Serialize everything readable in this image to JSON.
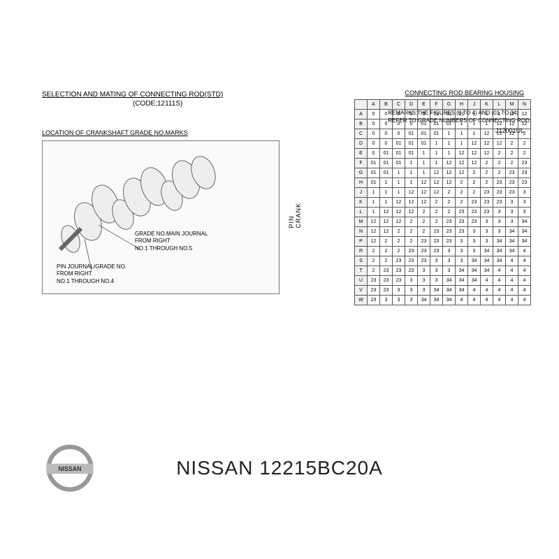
{
  "title": {
    "main": "SELECTION AND MATING OF CONNECTING ROD(STD)",
    "code": "(CODE;12111S)"
  },
  "location_label": "LOCATION OF CRANKSHAFT GRADE NO.MARKS",
  "callout1": {
    "line1": "GRADE NO.MAIN JOURNAL",
    "line2": "FROM RIGHT",
    "line3": "NO.1 THROUGH NO.5"
  },
  "callout2": {
    "line1": "PIN JOURNAL/GRADE NO.",
    "line2": "FROM RIGHT",
    "line3": "NO.1 THROUGH NO.4"
  },
  "table": {
    "title": "CONNECTING ROD BEARING HOUSING",
    "vertical_label": "CRANK PIN",
    "col_headers": [
      "A",
      "B",
      "C",
      "D",
      "E",
      "F",
      "G",
      "H",
      "J",
      "K",
      "L",
      "M",
      "N"
    ],
    "row_headers": [
      "A",
      "B",
      "C",
      "D",
      "E",
      "F",
      "G",
      "H",
      "J",
      "K",
      "L",
      "M",
      "N",
      "P",
      "R",
      "S",
      "T",
      "U",
      "V",
      "W"
    ],
    "rows": [
      [
        "0",
        "0",
        "0",
        "0",
        "0",
        "01",
        "01",
        "01",
        "1",
        "1",
        "1",
        "12",
        "12"
      ],
      [
        "0",
        "0",
        "0",
        "0",
        "01",
        "01",
        "01",
        "1",
        "1",
        "1",
        "12",
        "12",
        "12"
      ],
      [
        "0",
        "0",
        "0",
        "01",
        "01",
        "01",
        "1",
        "1",
        "1",
        "12",
        "12",
        "12",
        "2"
      ],
      [
        "0",
        "0",
        "01",
        "01",
        "01",
        "1",
        "1",
        "1",
        "12",
        "12",
        "12",
        "2",
        "2"
      ],
      [
        "0",
        "01",
        "01",
        "01",
        "1",
        "1",
        "1",
        "12",
        "12",
        "12",
        "2",
        "2",
        "2"
      ],
      [
        "01",
        "01",
        "01",
        "1",
        "1",
        "1",
        "12",
        "12",
        "12",
        "2",
        "2",
        "2",
        "23"
      ],
      [
        "01",
        "01",
        "1",
        "1",
        "1",
        "12",
        "12",
        "12",
        "2",
        "2",
        "2",
        "23",
        "23"
      ],
      [
        "01",
        "1",
        "1",
        "1",
        "12",
        "12",
        "12",
        "2",
        "2",
        "2",
        "23",
        "23",
        "23"
      ],
      [
        "1",
        "1",
        "1",
        "12",
        "12",
        "12",
        "2",
        "2",
        "2",
        "23",
        "23",
        "23",
        "3"
      ],
      [
        "1",
        "1",
        "12",
        "12",
        "12",
        "2",
        "2",
        "2",
        "23",
        "23",
        "23",
        "3",
        "3"
      ],
      [
        "1",
        "12",
        "12",
        "12",
        "2",
        "2",
        "2",
        "23",
        "23",
        "23",
        "3",
        "3",
        "3"
      ],
      [
        "12",
        "12",
        "12",
        "2",
        "2",
        "2",
        "23",
        "23",
        "23",
        "3",
        "3",
        "3",
        "34"
      ],
      [
        "12",
        "12",
        "2",
        "2",
        "2",
        "23",
        "23",
        "23",
        "3",
        "3",
        "3",
        "34",
        "34"
      ],
      [
        "12",
        "2",
        "2",
        "2",
        "23",
        "23",
        "23",
        "3",
        "3",
        "3",
        "34",
        "34",
        "34"
      ],
      [
        "2",
        "2",
        "2",
        "23",
        "23",
        "23",
        "3",
        "3",
        "3",
        "34",
        "34",
        "34",
        "4"
      ],
      [
        "2",
        "2",
        "23",
        "23",
        "23",
        "3",
        "3",
        "3",
        "34",
        "34",
        "34",
        "4",
        "4"
      ],
      [
        "2",
        "23",
        "23",
        "23",
        "3",
        "3",
        "3",
        "34",
        "34",
        "34",
        "4",
        "4",
        "4"
      ],
      [
        "23",
        "23",
        "23",
        "3",
        "3",
        "3",
        "34",
        "34",
        "34",
        "4",
        "4",
        "4",
        "4"
      ],
      [
        "23",
        "23",
        "3",
        "3",
        "3",
        "34",
        "34",
        "34",
        "4",
        "4",
        "4",
        "4",
        "4"
      ],
      [
        "23",
        "3",
        "3",
        "3",
        "34",
        "34",
        "34",
        "4",
        "4",
        "4",
        "4",
        "4",
        "4"
      ]
    ]
  },
  "remarks": {
    "line1": "REMARKS:THE FIGURES (0 TO 4) AND (01 TO 34)",
    "line2": "REFER TO GRADE NUMBERS OF CONNECTING ROD."
  },
  "ref_code": "J12001UL",
  "footer": {
    "brand": "NISSAN",
    "part_number": "NISSAN 12215BC20A"
  },
  "colors": {
    "border": "#555555",
    "text": "#222222",
    "bg": "#ffffff",
    "logo_gray": "#888888",
    "logo_silver": "#cccccc"
  }
}
